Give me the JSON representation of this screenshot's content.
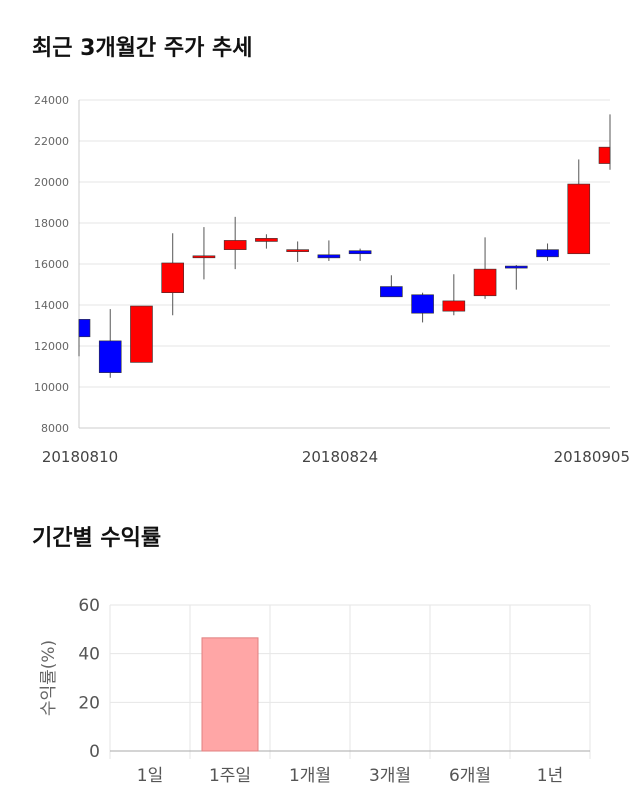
{
  "sections": {
    "stock_title": "최근 3개월간 주가 추세",
    "returns_title": "기간별 수익률"
  },
  "chart_data": [
    {
      "type": "candlestick",
      "ylim": [
        8000,
        24000
      ],
      "yticks": [
        8000,
        10000,
        12000,
        14000,
        16000,
        18000,
        20000,
        22000,
        24000
      ],
      "xtick_labels": [
        "20180810",
        "20180824",
        "20180905"
      ],
      "colors": {
        "up": "#ff0000",
        "down": "#0000ff"
      },
      "candles": [
        {
          "open": 13300,
          "close": 12450,
          "high": 13300,
          "low": 11500
        },
        {
          "open": 12250,
          "close": 10700,
          "high": 13800,
          "low": 10450
        },
        {
          "open": 11200,
          "close": 13950,
          "high": 13950,
          "low": 11200
        },
        {
          "open": 14600,
          "close": 16050,
          "high": 17500,
          "low": 13500
        },
        {
          "open": 16400,
          "close": 16400,
          "high": 17800,
          "low": 15250
        },
        {
          "open": 16700,
          "close": 17150,
          "high": 18300,
          "low": 15750
        },
        {
          "open": 17100,
          "close": 17250,
          "high": 17450,
          "low": 16750
        },
        {
          "open": 16700,
          "close": 16700,
          "high": 17100,
          "low": 16100
        },
        {
          "open": 16450,
          "close": 16300,
          "high": 17150,
          "low": 16150
        },
        {
          "open": 16650,
          "close": 16500,
          "high": 16750,
          "low": 16150
        },
        {
          "open": 14900,
          "close": 14400,
          "high": 15450,
          "low": 14400
        },
        {
          "open": 14500,
          "close": 13600,
          "high": 14600,
          "low": 13150
        },
        {
          "open": 13700,
          "close": 14200,
          "high": 15500,
          "low": 13500
        },
        {
          "open": 14450,
          "close": 15750,
          "high": 17300,
          "low": 14300
        },
        {
          "open": 15900,
          "close": 15800,
          "high": 15950,
          "low": 14750
        },
        {
          "open": 16700,
          "close": 16350,
          "high": 17000,
          "low": 16150
        },
        {
          "open": 16500,
          "close": 19900,
          "high": 21100,
          "low": 16500
        },
        {
          "open": 20900,
          "close": 21700,
          "high": 23300,
          "low": 20600
        }
      ]
    },
    {
      "type": "bar",
      "ylabel": "수익률(%)",
      "ylim": [
        0,
        60
      ],
      "yticks": [
        0,
        20,
        40,
        60
      ],
      "categories": [
        "1일",
        "1주일",
        "1개월",
        "3개월",
        "6개월",
        "1년"
      ],
      "values": [
        null,
        46.5,
        null,
        null,
        null,
        null
      ],
      "colors": {
        "bar_fill": "#ffa6a6",
        "bar_stroke": "#e08080"
      }
    }
  ]
}
